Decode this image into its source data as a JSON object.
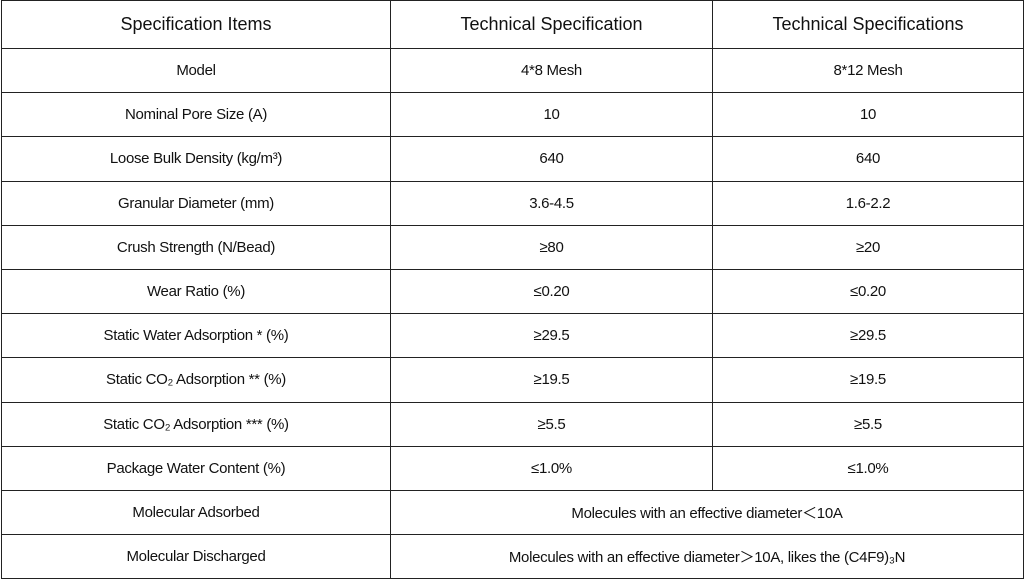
{
  "table": {
    "header": [
      "Specification Items",
      "Technical Specification",
      "Technical Specifications"
    ],
    "rows": [
      [
        "Model",
        "4*8 Mesh",
        "8*12 Mesh"
      ],
      [
        "Nominal Pore Size (A)",
        "10",
        "10"
      ],
      [
        "Loose Bulk Density (kg/m³)",
        "640",
        "640"
      ],
      [
        "Granular Diameter (mm)",
        "3.6-4.5",
        "1.6-2.2"
      ],
      [
        "Crush Strength (N/Bead)",
        "≥80",
        "≥20"
      ],
      [
        "Wear Ratio (%)",
        "≤0.20",
        "≤0.20"
      ],
      [
        "Static Water Adsorption * (%)",
        "≥29.5",
        "≥29.5"
      ],
      [
        "Static CO₂ Adsorption ** (%)",
        "≥19.5",
        "≥19.5"
      ],
      [
        "Static CO₂ Adsorption *** (%)",
        "≥5.5",
        "≥5.5"
      ],
      [
        "Package Water Content (%)",
        "≤1.0%",
        "≤1.0%"
      ],
      [
        "Molecular Adsorbed",
        "Molecules with an effective diameter＜10A"
      ],
      [
        "Molecular Discharged",
        "Molecules with an effective diameter＞10A, likes the (C4F9)₃N"
      ]
    ]
  }
}
